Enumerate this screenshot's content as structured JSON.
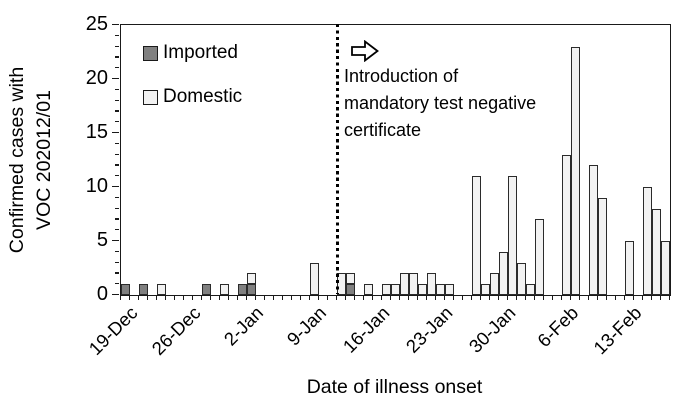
{
  "chart_data": {
    "type": "bar",
    "stacked": true,
    "xlabel": "Date of illness onset",
    "ylabel": "Confirmed cases with VOC 202012/01",
    "ylabel_lines": [
      "Confirmed cases with",
      "VOC 202012/01"
    ],
    "ylim": [
      0,
      25
    ],
    "ytick_step": 5,
    "yminor_step": 1,
    "grid": false,
    "legend_position": "top-left-inside",
    "categories": [
      "19-Dec",
      "20-Dec",
      "21-Dec",
      "22-Dec",
      "23-Dec",
      "24-Dec",
      "25-Dec",
      "26-Dec",
      "27-Dec",
      "28-Dec",
      "29-Dec",
      "30-Dec",
      "31-Dec",
      "1-Jan",
      "2-Jan",
      "3-Jan",
      "4-Jan",
      "5-Jan",
      "6-Jan",
      "7-Jan",
      "8-Jan",
      "9-Jan",
      "10-Jan",
      "11-Jan",
      "12-Jan",
      "13-Jan",
      "14-Jan",
      "15-Jan",
      "16-Jan",
      "17-Jan",
      "18-Jan",
      "19-Jan",
      "20-Jan",
      "21-Jan",
      "22-Jan",
      "23-Jan",
      "24-Jan",
      "25-Jan",
      "26-Jan",
      "27-Jan",
      "28-Jan",
      "29-Jan",
      "30-Jan",
      "31-Jan",
      "1-Feb",
      "2-Feb",
      "3-Feb",
      "4-Feb",
      "5-Feb",
      "6-Feb",
      "7-Feb",
      "8-Feb",
      "9-Feb",
      "10-Feb",
      "11-Feb",
      "12-Feb",
      "13-Feb",
      "14-Feb",
      "15-Feb",
      "16-Feb",
      "17-Feb"
    ],
    "xtick_labels": [
      "19-Dec",
      "26-Dec",
      "2-Jan",
      "9-Jan",
      "16-Jan",
      "23-Jan",
      "30-Jan",
      "6-Feb",
      "13-Feb"
    ],
    "series": [
      {
        "name": "Imported",
        "color": "#808080",
        "values": [
          1,
          0,
          1,
          0,
          0,
          0,
          0,
          0,
          0,
          1,
          0,
          0,
          0,
          1,
          1,
          0,
          0,
          0,
          0,
          0,
          0,
          0,
          0,
          0,
          0,
          1,
          0,
          0,
          0,
          0,
          0,
          0,
          0,
          0,
          0,
          0,
          0,
          0,
          0,
          0,
          0,
          0,
          0,
          0,
          0,
          0,
          0,
          0,
          0,
          0,
          0,
          0,
          0,
          0,
          0,
          0,
          0,
          0,
          0,
          0,
          0
        ]
      },
      {
        "name": "Domestic",
        "color": "#f2f2f2",
        "values": [
          0,
          0,
          0,
          0,
          1,
          0,
          0,
          0,
          0,
          0,
          0,
          1,
          0,
          0,
          1,
          0,
          0,
          0,
          0,
          0,
          0,
          3,
          0,
          0,
          2,
          1,
          0,
          1,
          0,
          1,
          1,
          2,
          2,
          1,
          2,
          1,
          1,
          0,
          0,
          11,
          1,
          2,
          4,
          11,
          3,
          1,
          7,
          0,
          0,
          13,
          23,
          0,
          12,
          9,
          0,
          0,
          5,
          0,
          10,
          8,
          5
        ]
      }
    ],
    "annotation": {
      "lines": [
        "Introduction of",
        "mandatory test negative",
        "certificate"
      ],
      "arrow_icon": "right-block-arrow",
      "line_style": "vertical-dotted",
      "line_category": "12-Jan"
    }
  }
}
